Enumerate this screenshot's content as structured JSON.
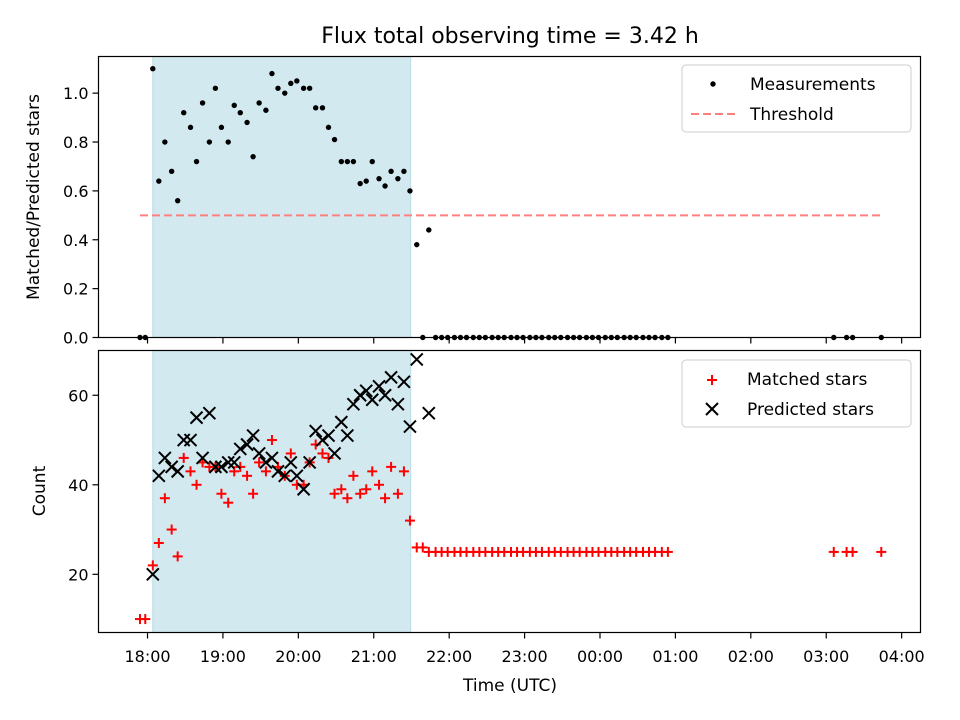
{
  "chart_data": {
    "type": "scatter",
    "title": "Flux total observing time = 3.42 h",
    "xlabel": "Time (UTC)",
    "x_ticks": [
      "18:00",
      "19:00",
      "20:00",
      "21:00",
      "22:00",
      "23:00",
      "00:00",
      "01:00",
      "02:00",
      "03:00",
      "04:00"
    ],
    "x_range_hours": [
      17.35,
      28.25
    ],
    "observing_window_hours": [
      18.07,
      21.49
    ],
    "shade_color": "#d3e9f0",
    "panels": [
      {
        "ylabel": "Matched/Predicted stars",
        "ylim": [
          0,
          1.15
        ],
        "yticks": [
          "0.0",
          "0.2",
          "0.4",
          "0.6",
          "0.8",
          "1.0"
        ],
        "legend_position": "upper right",
        "series": [
          {
            "name": "Measurements",
            "marker": "dot",
            "color": "#000000",
            "points": [
              [
                17.9,
                0
              ],
              [
                17.97,
                0
              ],
              [
                18.07,
                1.1
              ],
              [
                18.15,
                0.64
              ],
              [
                18.23,
                0.8
              ],
              [
                18.32,
                0.68
              ],
              [
                18.4,
                0.56
              ],
              [
                18.48,
                0.92
              ],
              [
                18.57,
                0.86
              ],
              [
                18.65,
                0.72
              ],
              [
                18.73,
                0.96
              ],
              [
                18.82,
                0.8
              ],
              [
                18.9,
                1.02
              ],
              [
                18.98,
                0.86
              ],
              [
                19.07,
                0.8
              ],
              [
                19.15,
                0.95
              ],
              [
                19.23,
                0.92
              ],
              [
                19.32,
                0.88
              ],
              [
                19.4,
                0.74
              ],
              [
                19.48,
                0.96
              ],
              [
                19.57,
                0.93
              ],
              [
                19.65,
                1.08
              ],
              [
                19.73,
                1.02
              ],
              [
                19.82,
                1.0
              ],
              [
                19.9,
                1.04
              ],
              [
                19.98,
                1.05
              ],
              [
                20.07,
                1.02
              ],
              [
                20.15,
                1.02
              ],
              [
                20.23,
                0.94
              ],
              [
                20.32,
                0.94
              ],
              [
                20.4,
                0.86
              ],
              [
                20.48,
                0.81
              ],
              [
                20.57,
                0.72
              ],
              [
                20.65,
                0.72
              ],
              [
                20.73,
                0.72
              ],
              [
                20.82,
                0.63
              ],
              [
                20.9,
                0.64
              ],
              [
                20.98,
                0.72
              ],
              [
                21.07,
                0.65
              ],
              [
                21.15,
                0.62
              ],
              [
                21.23,
                0.68
              ],
              [
                21.32,
                0.65
              ],
              [
                21.4,
                0.68
              ],
              [
                21.48,
                0.6
              ],
              [
                21.57,
                0.38
              ],
              [
                21.65,
                0
              ],
              [
                21.73,
                0.44
              ],
              [
                21.82,
                0
              ],
              [
                21.9,
                0
              ],
              [
                21.98,
                0
              ],
              [
                22.07,
                0
              ],
              [
                22.15,
                0
              ],
              [
                22.23,
                0
              ],
              [
                22.32,
                0
              ],
              [
                22.4,
                0
              ],
              [
                22.48,
                0
              ],
              [
                22.57,
                0
              ],
              [
                22.65,
                0
              ],
              [
                22.73,
                0
              ],
              [
                22.82,
                0
              ],
              [
                22.9,
                0
              ],
              [
                22.98,
                0
              ],
              [
                23.07,
                0
              ],
              [
                23.15,
                0
              ],
              [
                23.23,
                0
              ],
              [
                23.32,
                0
              ],
              [
                23.4,
                0
              ],
              [
                23.48,
                0
              ],
              [
                23.57,
                0
              ],
              [
                23.65,
                0
              ],
              [
                23.73,
                0
              ],
              [
                23.82,
                0
              ],
              [
                23.9,
                0
              ],
              [
                23.98,
                0
              ],
              [
                24.07,
                0
              ],
              [
                24.15,
                0
              ],
              [
                24.23,
                0
              ],
              [
                24.32,
                0
              ],
              [
                24.4,
                0
              ],
              [
                24.48,
                0
              ],
              [
                24.57,
                0
              ],
              [
                24.65,
                0
              ],
              [
                24.73,
                0
              ],
              [
                24.82,
                0
              ],
              [
                24.9,
                0
              ],
              [
                27.1,
                0
              ],
              [
                27.27,
                0
              ],
              [
                27.35,
                0
              ],
              [
                27.73,
                0
              ]
            ]
          },
          {
            "name": "Threshold",
            "line": "dashed",
            "color": "#ff7f7f",
            "points": [
              [
                17.9,
                0.5
              ],
              [
                27.73,
                0.5
              ]
            ]
          }
        ]
      },
      {
        "ylabel": "Count",
        "ylim": [
          7,
          70
        ],
        "yticks": [
          "20",
          "40",
          "60"
        ],
        "legend_position": "upper right",
        "series": [
          {
            "name": "Matched stars",
            "marker": "plus",
            "color": "#ff0000",
            "points": [
              [
                17.9,
                10
              ],
              [
                17.97,
                10
              ],
              [
                18.07,
                22
              ],
              [
                18.15,
                27
              ],
              [
                18.23,
                37
              ],
              [
                18.32,
                30
              ],
              [
                18.4,
                24
              ],
              [
                18.48,
                46
              ],
              [
                18.57,
                43
              ],
              [
                18.65,
                40
              ],
              [
                18.73,
                45
              ],
              [
                18.82,
                44
              ],
              [
                18.9,
                44
              ],
              [
                18.98,
                38
              ],
              [
                19.07,
                36
              ],
              [
                19.15,
                43
              ],
              [
                19.23,
                44
              ],
              [
                19.32,
                42
              ],
              [
                19.4,
                38
              ],
              [
                19.48,
                45
              ],
              [
                19.57,
                43
              ],
              [
                19.65,
                50
              ],
              [
                19.73,
                44
              ],
              [
                19.82,
                42
              ],
              [
                19.9,
                47
              ],
              [
                19.98,
                40
              ],
              [
                20.07,
                40
              ],
              [
                20.15,
                45
              ],
              [
                20.23,
                49
              ],
              [
                20.32,
                47
              ],
              [
                20.4,
                46
              ],
              [
                20.48,
                38
              ],
              [
                20.57,
                39
              ],
              [
                20.65,
                37
              ],
              [
                20.73,
                42
              ],
              [
                20.82,
                38
              ],
              [
                20.9,
                39
              ],
              [
                20.98,
                43
              ],
              [
                21.07,
                40
              ],
              [
                21.15,
                37
              ],
              [
                21.23,
                44
              ],
              [
                21.32,
                38
              ],
              [
                21.4,
                43
              ],
              [
                21.48,
                32
              ],
              [
                21.57,
                26
              ],
              [
                21.65,
                26
              ],
              [
                21.73,
                25
              ],
              [
                21.82,
                25
              ],
              [
                21.9,
                25
              ],
              [
                21.98,
                25
              ],
              [
                22.07,
                25
              ],
              [
                22.15,
                25
              ],
              [
                22.23,
                25
              ],
              [
                22.32,
                25
              ],
              [
                22.4,
                25
              ],
              [
                22.48,
                25
              ],
              [
                22.57,
                25
              ],
              [
                22.65,
                25
              ],
              [
                22.73,
                25
              ],
              [
                22.82,
                25
              ],
              [
                22.9,
                25
              ],
              [
                22.98,
                25
              ],
              [
                23.07,
                25
              ],
              [
                23.15,
                25
              ],
              [
                23.23,
                25
              ],
              [
                23.32,
                25
              ],
              [
                23.4,
                25
              ],
              [
                23.48,
                25
              ],
              [
                23.57,
                25
              ],
              [
                23.65,
                25
              ],
              [
                23.73,
                25
              ],
              [
                23.82,
                25
              ],
              [
                23.9,
                25
              ],
              [
                23.98,
                25
              ],
              [
                24.07,
                25
              ],
              [
                24.15,
                25
              ],
              [
                24.23,
                25
              ],
              [
                24.32,
                25
              ],
              [
                24.4,
                25
              ],
              [
                24.48,
                25
              ],
              [
                24.57,
                25
              ],
              [
                24.65,
                25
              ],
              [
                24.73,
                25
              ],
              [
                24.82,
                25
              ],
              [
                24.9,
                25
              ],
              [
                27.1,
                25
              ],
              [
                27.27,
                25
              ],
              [
                27.35,
                25
              ],
              [
                27.73,
                25
              ]
            ]
          },
          {
            "name": "Predicted stars",
            "marker": "x",
            "color": "#000000",
            "points": [
              [
                18.07,
                20
              ],
              [
                18.15,
                42
              ],
              [
                18.23,
                46
              ],
              [
                18.32,
                44
              ],
              [
                18.4,
                43
              ],
              [
                18.48,
                50
              ],
              [
                18.57,
                50
              ],
              [
                18.65,
                55
              ],
              [
                18.73,
                46
              ],
              [
                18.82,
                56
              ],
              [
                18.9,
                44
              ],
              [
                18.98,
                44
              ],
              [
                19.07,
                45
              ],
              [
                19.15,
                45
              ],
              [
                19.23,
                48
              ],
              [
                19.32,
                49
              ],
              [
                19.4,
                51
              ],
              [
                19.48,
                47
              ],
              [
                19.57,
                45
              ],
              [
                19.65,
                46
              ],
              [
                19.73,
                43
              ],
              [
                19.82,
                42
              ],
              [
                19.9,
                45
              ],
              [
                19.98,
                42
              ],
              [
                20.07,
                39
              ],
              [
                20.15,
                45
              ],
              [
                20.23,
                52
              ],
              [
                20.32,
                50
              ],
              [
                20.4,
                51
              ],
              [
                20.48,
                47
              ],
              [
                20.57,
                54
              ],
              [
                20.65,
                51
              ],
              [
                20.73,
                58
              ],
              [
                20.82,
                60
              ],
              [
                20.9,
                61
              ],
              [
                20.98,
                59
              ],
              [
                21.07,
                62
              ],
              [
                21.15,
                60
              ],
              [
                21.23,
                64
              ],
              [
                21.32,
                58
              ],
              [
                21.4,
                63
              ],
              [
                21.48,
                53
              ],
              [
                21.57,
                68
              ],
              [
                21.73,
                56
              ]
            ]
          }
        ]
      }
    ]
  }
}
